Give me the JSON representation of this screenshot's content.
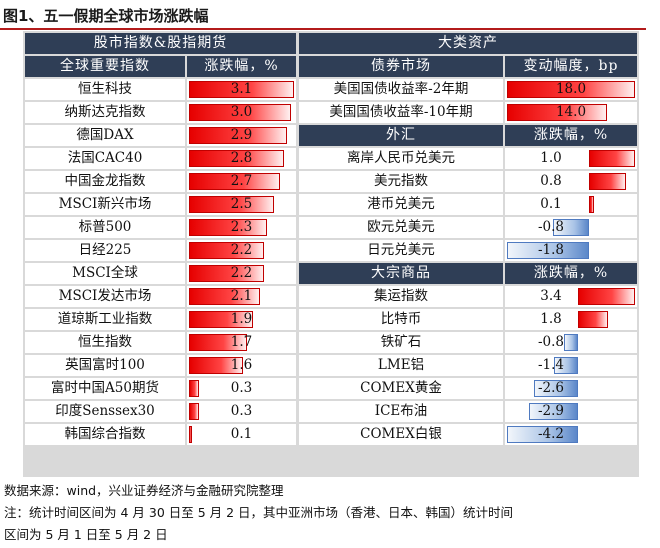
{
  "figure_title": "图1、五一假期全球市场涨跌幅",
  "colors": {
    "positive": "#e60000",
    "negative": "#5b87c9",
    "header": "#2f3e56",
    "rule": "#b31b1b"
  },
  "left_panel": {
    "section_title": "股市指数&股指期货",
    "col_name": "全球重要指数",
    "col_value": "涨跌幅，%"
  },
  "right_panel": {
    "section_title": "大类资产",
    "bonds": {
      "col_name": "债券市场",
      "col_value": "变动幅度，bp"
    },
    "fx": {
      "col_name": "外汇",
      "col_value": "涨跌幅，%"
    },
    "commodities": {
      "col_name": "大宗商品",
      "col_value": "涨跌幅，%"
    }
  },
  "chart_data": {
    "type": "table",
    "title": "图1、五一假期全球市场涨跌幅",
    "tables": [
      {
        "name": "股市指数&股指期货",
        "unit": "涨跌幅，%",
        "scale_max": 3.1,
        "rows": [
          {
            "label": "恒生科技",
            "value": 3.1
          },
          {
            "label": "纳斯达克指数",
            "value": 3.0
          },
          {
            "label": "德国DAX",
            "value": 2.9
          },
          {
            "label": "法国CAC40",
            "value": 2.8
          },
          {
            "label": "中国金龙指数",
            "value": 2.7
          },
          {
            "label": "MSCI新兴市场",
            "value": 2.5
          },
          {
            "label": "标普500",
            "value": 2.3
          },
          {
            "label": "日经225",
            "value": 2.2
          },
          {
            "label": "MSCI全球",
            "value": 2.2
          },
          {
            "label": "MSCI发达市场",
            "value": 2.1
          },
          {
            "label": "道琼斯工业指数",
            "value": 1.9
          },
          {
            "label": "恒生指数",
            "value": 1.7
          },
          {
            "label": "英国富时100",
            "value": 1.6
          },
          {
            "label": "富时中国A50期货",
            "value": 0.3
          },
          {
            "label": "印度Senssex30",
            "value": 0.3
          },
          {
            "label": "韩国综合指数",
            "value": 0.1
          }
        ]
      },
      {
        "name": "债券市场",
        "unit": "变动幅度，bp",
        "scale_max": 18.0,
        "rows": [
          {
            "label": "美国国债收益率-2年期",
            "value": 18.0,
            "display": "18.0"
          },
          {
            "label": "美国国债收益率-10年期",
            "value": 14.0,
            "display": "14.0"
          }
        ]
      },
      {
        "name": "外汇",
        "unit": "涨跌幅，%",
        "scale_min": -1.8,
        "scale_max": 1.0,
        "rows": [
          {
            "label": "离岸人民币兑美元",
            "value": 1.0,
            "display": "1.0"
          },
          {
            "label": "美元指数",
            "value": 0.8,
            "display": "0.8"
          },
          {
            "label": "港币兑美元",
            "value": 0.1,
            "display": "0.1"
          },
          {
            "label": "欧元兑美元",
            "value": -0.8,
            "display": "-0.8"
          },
          {
            "label": "日元兑美元",
            "value": -1.8,
            "display": "-1.8"
          }
        ]
      },
      {
        "name": "大宗商品",
        "unit": "涨跌幅，%",
        "scale_min": -4.2,
        "scale_max": 3.4,
        "rows": [
          {
            "label": "集运指数",
            "value": 3.4,
            "display": "3.4"
          },
          {
            "label": "比特币",
            "value": 1.8,
            "display": "1.8"
          },
          {
            "label": "铁矿石",
            "value": -0.8,
            "display": "-0.8"
          },
          {
            "label": "LME铝",
            "value": -1.4,
            "display": "-1.4"
          },
          {
            "label": "COMEX黄金",
            "value": -2.6,
            "display": "-2.6"
          },
          {
            "label": "ICE布油",
            "value": -2.9,
            "display": "-2.9"
          },
          {
            "label": "COMEX白银",
            "value": -4.2,
            "display": "-4.2"
          }
        ]
      }
    ]
  },
  "notes": {
    "source": "数据来源：wind，兴业证券经济与金融研究院整理",
    "line1": "注：统计时间区间为 4 月 30 日至 5 月 2 日，其中亚洲市场（香港、日本、韩国）统计时间",
    "line2": "区间为 5 月 1 日至 5 月 2 日"
  }
}
